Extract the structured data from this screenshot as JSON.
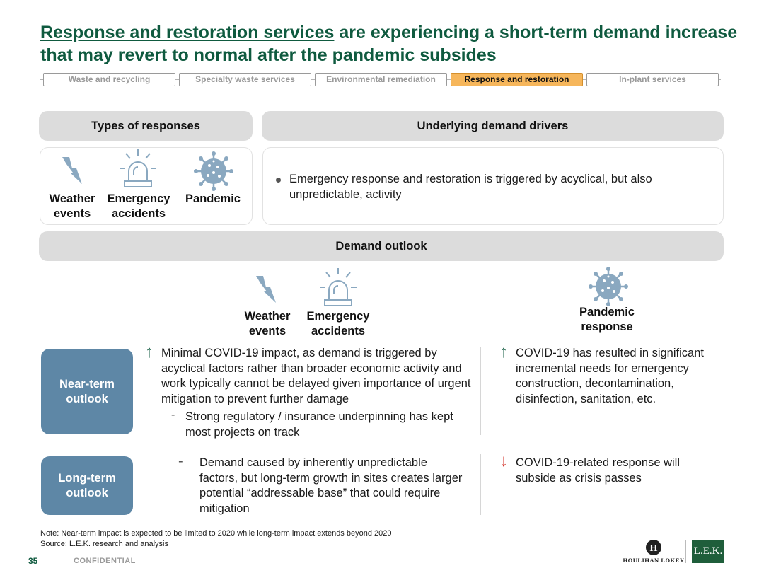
{
  "title": {
    "underlined": "Response and restoration services",
    "rest": " are experiencing a short-term demand increase that may revert to normal after the pandemic subsides"
  },
  "tabs": [
    {
      "label": "Waste and recycling",
      "active": false
    },
    {
      "label": "Specialty waste services",
      "active": false
    },
    {
      "label": "Environmental remediation",
      "active": false
    },
    {
      "label": "Response and restoration",
      "active": true
    },
    {
      "label": "In-plant services",
      "active": false
    }
  ],
  "types_header": "Types of responses",
  "drivers_header": "Underlying demand drivers",
  "types": {
    "weather": "Weather events",
    "emergency": "Emergency accidents",
    "pandemic": "Pandemic"
  },
  "drivers_bullet": "Emergency response and restoration is triggered by acyclical, but also unpredictable, activity",
  "outlook_header": "Demand outlook",
  "outlook_cols": {
    "weather": "Weather events",
    "emergency": "Emergency accidents",
    "pandemic": "Pandemic response"
  },
  "near_term": {
    "label": "Near-term outlook",
    "left_main": "Minimal COVID-19 impact, as demand is triggered by acyclical factors rather than broader economic activity and work typically cannot be delayed given importance of urgent mitigation to prevent further damage",
    "left_sub": "Strong regulatory / insurance underpinning has kept most projects on track",
    "right": "COVID-19 has resulted in significant incremental needs for emergency construction, decontamination, disinfection, sanitation, etc."
  },
  "long_term": {
    "label": "Long-term outlook",
    "left": "Demand caused by inherently unpredictable factors, but long-term growth in sites creates larger potential “addressable base” that could require mitigation",
    "right": "COVID-19-related response will subside as crisis passes"
  },
  "symbols": {
    "up_arrow": "↑",
    "down_arrow": "↓",
    "dash": "-"
  },
  "colors": {
    "title_green": "#0f5a3f",
    "active_tab": "#f6b65b",
    "outlook_blue": "#5e87a6",
    "up_arrow": "#0f5a3f",
    "down_arrow": "#d0281f",
    "icon_blue": "#8aa8c0"
  },
  "icons": {
    "weather": "lightning-icon",
    "emergency": "siren-icon",
    "pandemic": "virus-icon"
  },
  "footnote": "Note: Near-term impact is expected to be limited to 2020 while long-term impact extends beyond 2020",
  "source": "Source:  L.E.K. research and analysis",
  "page_number": "35",
  "confidential": "CONFIDENTIAL",
  "logos": {
    "houlihan": "HOULIHAN LOKEY",
    "houlihan_mark": "H",
    "lek": "L.E.K."
  }
}
